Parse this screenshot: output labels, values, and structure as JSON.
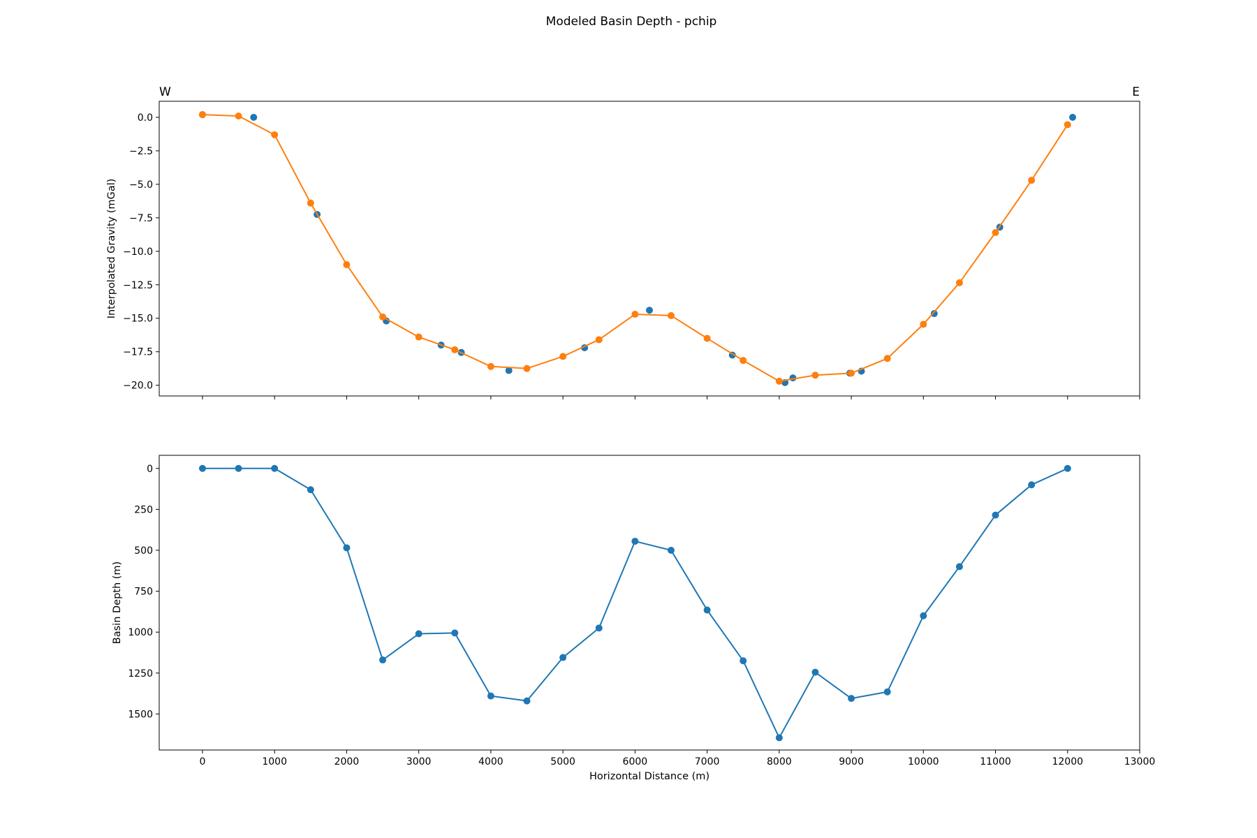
{
  "chart_data": [
    {
      "type": "scatter",
      "title": "Modeled Basin Depth - pchip",
      "corner_labels": {
        "left": "W",
        "right": "E"
      },
      "xlabel": "",
      "ylabel": "Interpolated Gravity (mGal)",
      "xlim": [
        -600,
        13000
      ],
      "ylim": [
        -20.8,
        1.2
      ],
      "yticks": [
        0.0,
        -2.5,
        -5.0,
        -7.5,
        -10.0,
        -12.5,
        -15.0,
        -17.5,
        -20.0
      ],
      "ytick_labels": [
        "0.0",
        "−2.5",
        "−5.0",
        "−7.5",
        "−10.0",
        "−12.5",
        "−15.0",
        "−17.5",
        "−20.0"
      ],
      "grid": false,
      "series": [
        {
          "color": "#1f77b4",
          "mode": "markers",
          "x": [
            0,
            710,
            1590,
            2550,
            3310,
            3590,
            4250,
            5300,
            6200,
            7350,
            8080,
            8190,
            8980,
            9140,
            10150,
            11060,
            12070
          ],
          "y": [
            0.2,
            0.0,
            -7.25,
            -15.2,
            -17.0,
            -17.55,
            -18.9,
            -17.2,
            -14.4,
            -17.75,
            -19.8,
            -19.45,
            -19.1,
            -18.95,
            -14.65,
            -8.2,
            0.0
          ]
        },
        {
          "color": "#ff7f0e",
          "mode": "lines+markers",
          "x": [
            0,
            500,
            1000,
            1500,
            2000,
            2500,
            3000,
            3500,
            4000,
            4500,
            5000,
            5500,
            6000,
            6500,
            7000,
            7500,
            8000,
            8500,
            9000,
            9500,
            10000,
            10500,
            11000,
            11500,
            12000
          ],
          "y": [
            0.2,
            0.1,
            -1.3,
            -6.4,
            -11.0,
            -14.9,
            -16.4,
            -17.35,
            -18.6,
            -18.75,
            -17.85,
            -16.6,
            -14.7,
            -14.8,
            -16.5,
            -18.15,
            -19.7,
            -19.25,
            -19.1,
            -18.0,
            -15.45,
            -12.35,
            -8.6,
            -4.7,
            -0.55
          ]
        }
      ]
    },
    {
      "type": "line",
      "xlabel": "Horizontal Distance (m)",
      "ylabel": "Basin Depth (m)",
      "xlim": [
        -600,
        13000
      ],
      "ylim": [
        1720,
        -80
      ],
      "y_inverted": true,
      "xticks": [
        0,
        1000,
        2000,
        3000,
        4000,
        5000,
        6000,
        7000,
        8000,
        9000,
        10000,
        11000,
        12000,
        13000
      ],
      "xtick_labels": [
        "0",
        "1000",
        "2000",
        "3000",
        "4000",
        "5000",
        "6000",
        "7000",
        "8000",
        "9000",
        "10000",
        "11000",
        "12000",
        "13000"
      ],
      "yticks": [
        0,
        250,
        500,
        750,
        1000,
        1250,
        1500
      ],
      "ytick_labels": [
        "0",
        "250",
        "500",
        "750",
        "1000",
        "1250",
        "1500"
      ],
      "grid": false,
      "series": [
        {
          "color": "#1f77b4",
          "mode": "lines+markers",
          "x": [
            0,
            500,
            1000,
            1500,
            2000,
            2500,
            3000,
            3500,
            4000,
            4500,
            5000,
            5500,
            6000,
            6500,
            7000,
            7500,
            8000,
            8500,
            9000,
            9500,
            10000,
            10500,
            11000,
            11500,
            12000
          ],
          "y": [
            0,
            0,
            0,
            130,
            485,
            1170,
            1010,
            1005,
            1390,
            1420,
            1155,
            975,
            445,
            500,
            865,
            1175,
            1645,
            1245,
            1405,
            1365,
            900,
            600,
            285,
            100,
            0
          ]
        }
      ]
    }
  ]
}
